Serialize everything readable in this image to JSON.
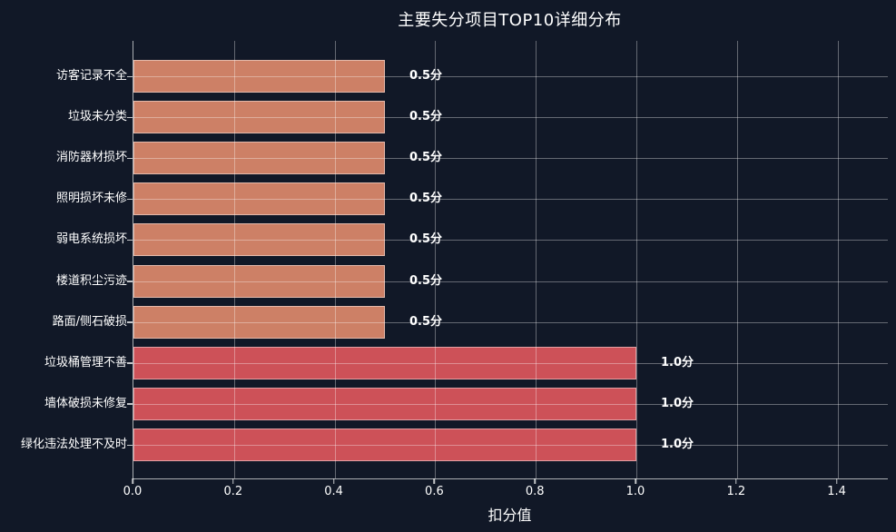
{
  "chart_data": {
    "type": "bar",
    "orientation": "horizontal",
    "title": "主要失分项目TOP10详细分布",
    "xlabel": "扣分值",
    "ylabel": "",
    "categories": [
      "访客记录不全",
      "垃圾未分类",
      "消防器材损坏",
      "照明损坏未修",
      "弱电系统损坏",
      "楼道积尘污迹",
      "路面/侧石破损",
      "垃圾桶管理不善",
      "墙体破损未修复",
      "绿化违法处理不及时"
    ],
    "values": [
      0.5,
      0.5,
      0.5,
      0.5,
      0.5,
      0.5,
      0.5,
      1.0,
      1.0,
      1.0
    ],
    "value_labels": [
      "0.5分",
      "0.5分",
      "0.5分",
      "0.5分",
      "0.5分",
      "0.5分",
      "0.5分",
      "1.0分",
      "1.0分",
      "1.0分"
    ],
    "bar_colors": [
      "#CD8066",
      "#CD8066",
      "#CD8066",
      "#CD8066",
      "#CD8066",
      "#CD8066",
      "#CD8066",
      "#CD5158",
      "#CD5158",
      "#CD5158"
    ],
    "xlim": [
      0,
      1.5
    ],
    "xticks": [
      "0.0",
      "0.2",
      "0.4",
      "0.6",
      "0.8",
      "1.0",
      "1.2",
      "1.4"
    ],
    "grid": true,
    "legend": "none",
    "colors": {
      "background": "#111827",
      "text": "#ffffff",
      "grid": "rgba(255,255,255,0.35)",
      "bar_low": "#CD8066",
      "bar_high": "#CD5158"
    }
  }
}
